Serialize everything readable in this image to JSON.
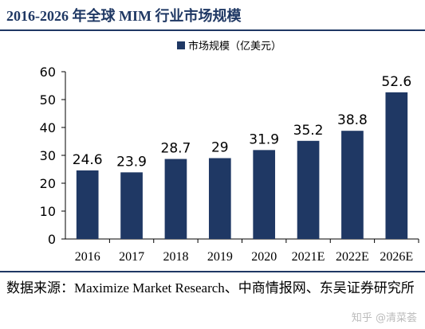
{
  "header": {
    "title": "2016-2026 年全球 MIM 行业市场规模"
  },
  "footer": {
    "source": "数据来源：Maximize Market Research、中商情报网、东吴证券研究所",
    "watermark": "知乎 @清菜荟"
  },
  "colors": {
    "bar": "#1f3864",
    "title": "#1f3864",
    "axis": "#000000"
  },
  "chart_data": {
    "type": "bar",
    "title": "",
    "xlabel": "",
    "ylabel": "",
    "categories": [
      "2016",
      "2017",
      "2018",
      "2019",
      "2020",
      "2021E",
      "2022E",
      "2026E"
    ],
    "series": [
      {
        "name": "市场规模（亿美元）",
        "values": [
          24.6,
          23.9,
          28.7,
          29,
          31.9,
          35.2,
          38.8,
          52.6
        ]
      }
    ],
    "data_labels": [
      "24.6",
      "23.9",
      "28.7",
      "29",
      "31.9",
      "35.2",
      "38.8",
      "52.6"
    ],
    "ylim": [
      0,
      60
    ],
    "yticks": [
      0,
      10,
      20,
      30,
      40,
      50,
      60
    ],
    "grid": false,
    "legend": "top-center"
  }
}
